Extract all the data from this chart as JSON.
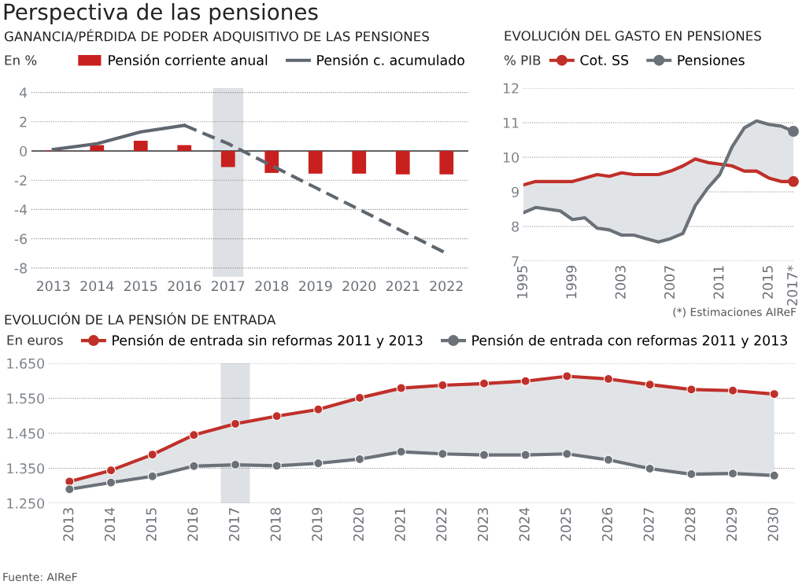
{
  "chart_data": [
    {
      "type": "bar",
      "title": "Perspectiva de las pensiones",
      "subtitle": "GANANCIA/PÉRDIDA DE PODER ADQUISITIVO DE LAS PENSIONES",
      "ylabel": "En %",
      "categories": [
        "2013",
        "2014",
        "2015",
        "2016",
        "2017",
        "2018",
        "2019",
        "2020",
        "2021",
        "2022"
      ],
      "series": [
        {
          "name": "Pensión corriente anual",
          "type": "bar",
          "color": "#c8201e",
          "values": [
            0.05,
            0.4,
            0.7,
            0.4,
            -1.1,
            -1.5,
            -1.55,
            -1.55,
            -1.6,
            -1.6
          ]
        },
        {
          "name": "Pensión c. acumulado",
          "type": "line",
          "line_style": "solid",
          "color": "#5f6770",
          "values": [
            0.1,
            0.5,
            1.3,
            1.75,
            null,
            null,
            null,
            null,
            null,
            null
          ]
        },
        {
          "type": "line",
          "line_style": "dashed",
          "color": "#5f6770",
          "values": [
            null,
            null,
            null,
            1.75,
            0.5,
            -1.0,
            -2.5,
            -4.0,
            -5.5,
            -7.0
          ]
        }
      ],
      "ylim": [
        -8.6,
        4.3
      ],
      "yticks": [
        {
          "value": -8,
          "label": "-8"
        },
        {
          "value": -6,
          "label": "-6"
        },
        {
          "value": -4,
          "label": "-4"
        },
        {
          "value": -2,
          "label": "-2"
        },
        0,
        2,
        4
      ],
      "bands": [
        {
          "axis": "x",
          "from": "2017",
          "to": "2017",
          "color": "#dde1e5"
        }
      ],
      "ref_lines": [
        {
          "axis": "y",
          "value": 0,
          "color": "#333333"
        }
      ],
      "grid": "y",
      "legend": "top"
    },
    {
      "type": "line",
      "title": "EVOLUCIÓN DEL GASTO EN PENSIONES",
      "ylabel": "% PIB",
      "x": [
        1995,
        1996,
        1997,
        1998,
        1999,
        2000,
        2001,
        2002,
        2003,
        2004,
        2005,
        2006,
        2007,
        2008,
        2009,
        2010,
        2011,
        2012,
        2013,
        2014,
        2015,
        2016,
        2017
      ],
      "series": [
        {
          "name": "Cot. SS",
          "color": "#c0302a",
          "values": [
            9.2,
            9.3,
            9.3,
            9.3,
            9.3,
            9.4,
            9.5,
            9.45,
            9.55,
            9.5,
            9.5,
            9.5,
            9.6,
            9.75,
            9.95,
            9.85,
            9.8,
            9.75,
            9.6,
            9.6,
            9.4,
            9.3,
            9.3
          ],
          "lower": [
            9.2,
            9.3,
            9.3,
            9.3,
            9.3,
            9.4,
            9.5,
            9.45,
            9.55,
            9.5,
            9.5,
            9.5,
            9.6,
            9.75,
            9.95,
            9.85,
            9.8,
            9.75,
            9.6,
            9.6,
            9.4,
            9.3,
            9.3
          ],
          "upper": [
            8.4,
            8.55,
            8.5,
            8.45,
            8.2,
            8.25,
            7.95,
            7.9,
            7.75,
            7.75,
            7.65,
            7.55,
            7.65,
            7.8,
            8.6,
            9.1,
            9.5,
            10.3,
            10.85,
            11.05,
            10.95,
            10.9,
            10.75
          ]
        },
        {
          "name": "Pensiones",
          "color": "#6b7178",
          "values": [
            8.4,
            8.55,
            8.5,
            8.45,
            8.2,
            8.25,
            7.95,
            7.9,
            7.75,
            7.75,
            7.65,
            7.55,
            7.65,
            7.8,
            8.6,
            9.1,
            9.5,
            10.3,
            10.85,
            11.05,
            10.95,
            10.9,
            10.75
          ]
        },
        {
          "type": "scatter",
          "color": "#c0302a",
          "x": [
            2017
          ],
          "values": [
            9.3
          ]
        },
        {
          "type": "scatter",
          "color": "#6b7178",
          "x": [
            2017
          ],
          "values": [
            10.75
          ]
        }
      ],
      "xlim": [
        1995,
        2017
      ],
      "xticks": [
        1995,
        1999,
        2003,
        2007,
        2011,
        2015,
        {
          "value": 2017,
          "label": "2017*"
        }
      ],
      "ylim": [
        7,
        12
      ],
      "yticks": [
        7,
        8,
        9,
        10,
        11,
        12
      ],
      "annotations": [
        "(*) Estimaciones AIReF"
      ],
      "grid": "y",
      "legend": "top"
    },
    {
      "type": "line",
      "title": "EVOLUCIÓN DE LA PENSIÓN DE ENTRADA",
      "ylabel": "En euros",
      "categories": [
        "2013",
        "2014",
        "2015",
        "2016",
        "2017",
        "2018",
        "2019",
        "2020",
        "2021",
        "2022",
        "2023",
        "2024",
        "2025",
        "2026",
        "2027",
        "2028",
        "2029",
        "2030"
      ],
      "series": [
        {
          "name": "Pensión de entrada sin reformas 2011 y 2013",
          "color": "#c0302a",
          "values": [
            1312,
            1344,
            1389,
            1445,
            1477,
            1499,
            1518,
            1551,
            1579,
            1587,
            1592,
            1599,
            1613,
            1605,
            1589,
            1575,
            1572,
            1562
          ],
          "lower": [
            1290,
            1309,
            1327,
            1356,
            1360,
            1357,
            1364,
            1376,
            1397,
            1391,
            1388,
            1388,
            1391,
            1374,
            1349,
            1333,
            1335,
            1329
          ],
          "upper": [
            1312,
            1344,
            1389,
            1445,
            1477,
            1499,
            1518,
            1551,
            1579,
            1587,
            1592,
            1599,
            1613,
            1605,
            1589,
            1575,
            1572,
            1562
          ]
        },
        {
          "name": "Pensión de entrada con reformas 2011 y 2013",
          "color": "#6b7178",
          "values": [
            1290,
            1309,
            1327,
            1356,
            1360,
            1357,
            1364,
            1376,
            1397,
            1391,
            1388,
            1388,
            1391,
            1374,
            1349,
            1333,
            1335,
            1329
          ]
        }
      ],
      "ylim": [
        1250,
        1650
      ],
      "yticks": [
        {
          "value": 1250,
          "label": "1.250"
        },
        {
          "value": 1350,
          "label": "1.350"
        },
        {
          "value": 1450,
          "label": "1.450"
        },
        {
          "value": 1550,
          "label": "1.550"
        },
        {
          "value": 1650,
          "label": "1.650"
        }
      ],
      "bands": [
        {
          "axis": "x",
          "from": "2017",
          "to": "2017",
          "color": "#dde1e5"
        }
      ],
      "annotations": [
        "Fuente: AIReF"
      ],
      "grid": "y",
      "legend": "top",
      "marker": "circle"
    }
  ]
}
